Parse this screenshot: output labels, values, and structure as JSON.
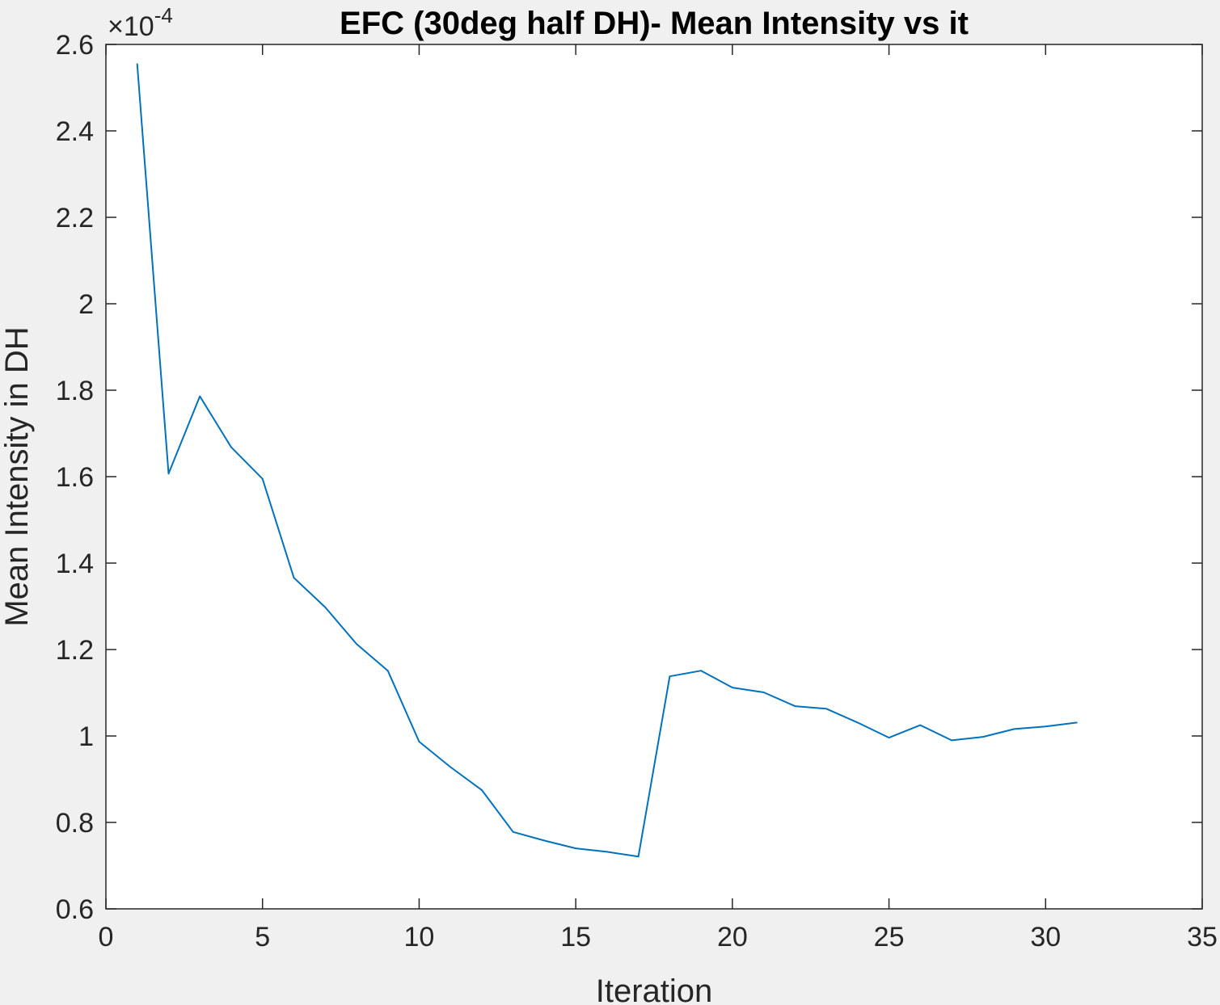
{
  "chart_data": {
    "type": "line",
    "title": "EFC (30deg half DH)- Mean Intensity vs it",
    "xlabel": "Iteration",
    "ylabel": "Mean Intensity in DH",
    "y_multiplier": "×10",
    "y_exponent": "-4",
    "xlim": [
      0,
      35
    ],
    "ylim": [
      0.6,
      2.6
    ],
    "xticks": [
      "0",
      "5",
      "10",
      "15",
      "20",
      "25",
      "30",
      "35"
    ],
    "yticks": [
      "0.6",
      "0.8",
      "1",
      "1.2",
      "1.4",
      "1.6",
      "1.8",
      "2",
      "2.2",
      "2.4",
      "2.6"
    ],
    "grid": false,
    "series": [
      {
        "color": "#0072bd",
        "x": [
          1,
          2,
          3,
          4,
          5,
          6,
          7,
          8,
          9,
          10,
          11,
          12,
          13,
          14,
          15,
          16,
          17,
          18,
          19,
          20,
          21,
          22,
          23,
          24,
          25,
          26,
          27,
          28,
          29,
          30,
          31
        ],
        "y": [
          2.555,
          1.607,
          1.786,
          1.668,
          1.595,
          1.366,
          1.298,
          1.213,
          1.151,
          0.987,
          0.928,
          0.875,
          0.778,
          0.758,
          0.74,
          0.732,
          0.721,
          1.138,
          1.151,
          1.112,
          1.101,
          1.069,
          1.063,
          1.031,
          0.996,
          1.025,
          0.99,
          0.998,
          1.016,
          1.022,
          1.031
        ]
      }
    ]
  }
}
